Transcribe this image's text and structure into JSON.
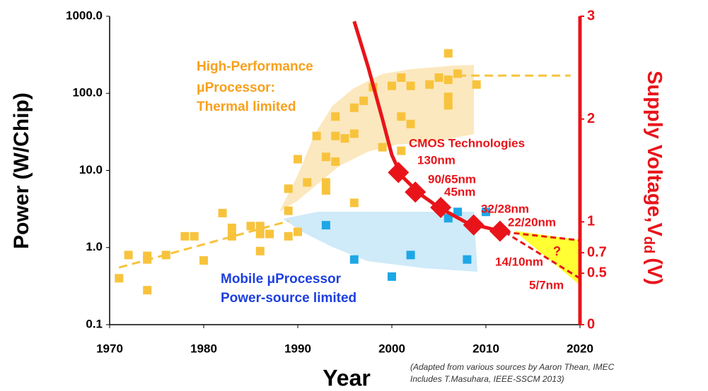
{
  "chart_data": {
    "type": "scatter",
    "xlabel": "Year",
    "ylabel": "Power (W/Chip)",
    "y2label": {
      "main": "Supply Voltage,V",
      "sub": "dd",
      "unit": "(V)"
    },
    "xlim": [
      1970,
      2020
    ],
    "xticks": [
      1970,
      1980,
      1990,
      2000,
      2010,
      2020
    ],
    "ylim": [
      0.1,
      1000
    ],
    "log_y": true,
    "yticks": [
      0.1,
      {
        "value": 1,
        "label": "1.0"
      },
      {
        "value": 10,
        "label": "10.0"
      },
      {
        "value": 100,
        "label": "100.0"
      },
      {
        "value": 1000,
        "label": "1000.0"
      }
    ],
    "y2lim": [
      0,
      3
    ],
    "y2ticks": [
      0,
      0.5,
      0.7,
      1,
      2,
      3
    ],
    "high_performance": {
      "color": "#f8c33c",
      "x": [
        1971,
        1972,
        1974,
        1974,
        1974,
        1976,
        1978,
        1979,
        1980,
        1982,
        1983,
        1983,
        1985,
        1986,
        1986,
        1986,
        1987,
        1989,
        1989,
        1989,
        1990,
        1990,
        1991,
        1993,
        1993,
        1993,
        1994,
        1994,
        1994,
        1995,
        1996,
        1996,
        1996,
        1997,
        1998,
        2000,
        2001,
        2001,
        2002,
        2002,
        2004,
        2005,
        2006,
        2006,
        2006,
        2006,
        2007,
        2009,
        1992,
        1999,
        2001
      ],
      "values": [
        0.4,
        0.8,
        0.78,
        0.7,
        0.28,
        0.8,
        1.4,
        1.4,
        0.68,
        2.8,
        1.4,
        1.8,
        1.9,
        1.9,
        1.5,
        0.9,
        1.5,
        1.4,
        3,
        5.8,
        1.6,
        14,
        7,
        7,
        5.5,
        15,
        13,
        50,
        28,
        26,
        30,
        3.8,
        65,
        80,
        120,
        125,
        50,
        160,
        125,
        40,
        130,
        160,
        70,
        90,
        330,
        150,
        180,
        130,
        28,
        20,
        18
      ]
    },
    "mobile": {
      "color": "#1ea7e6",
      "x": [
        1993,
        1996,
        2000,
        2002,
        2006,
        2007,
        2008,
        2010
      ],
      "values": [
        1.95,
        0.7,
        0.42,
        0.8,
        2.4,
        2.9,
        0.7,
        2.9
      ]
    },
    "trend": {
      "color": "#f8c33c",
      "x": [
        1971,
        1989
      ],
      "values": [
        0.55,
        2.2
      ]
    },
    "trend_top": {
      "color": "#f8c33c",
      "x": [
        2007,
        2019
      ],
      "values": [
        170,
        170
      ]
    },
    "cmos_nodes": {
      "color": "#e8141a",
      "axis": "y2",
      "x": [
        2000.7,
        2002.5,
        2005.2,
        2008.7,
        2011.5
      ],
      "values": [
        1.48,
        1.29,
        1.14,
        0.97,
        0.91
      ]
    },
    "voltage_curve": {
      "color": "#e8141a",
      "axis": "y2",
      "x": [
        1996,
        1997.5,
        1999,
        2000,
        2001,
        2003,
        2005,
        2008,
        2012
      ],
      "values": [
        2.95,
        2.5,
        2.0,
        1.65,
        1.45,
        1.27,
        1.14,
        0.99,
        0.9
      ]
    },
    "projection_upper": {
      "color": "#e8141a",
      "axis": "y2",
      "x": [
        2012,
        2020
      ],
      "values": [
        0.9,
        0.82
      ]
    },
    "projection_lower": {
      "color": "#e8141a",
      "axis": "y2",
      "x": [
        2012,
        2020
      ],
      "values": [
        0.9,
        0.45
      ]
    },
    "annotations": {
      "hp": [
        "High-Performance",
        "μProcessor:",
        "Thermal limited"
      ],
      "mobile": [
        "Mobile μProcessor",
        "Power-source limited"
      ],
      "cmos": "CMOS Technologies",
      "question": "?",
      "credit": [
        "(Adapted from various sources by Aaron Thean, IMEC",
        "Includes T.Masuhara, IEEE-SSCM 2013)"
      ]
    },
    "node_labels": [
      "130nm",
      "90/65nm",
      "45nm",
      "32/28nm",
      "22/20nm",
      "14/10nm",
      "5/7nm"
    ]
  }
}
